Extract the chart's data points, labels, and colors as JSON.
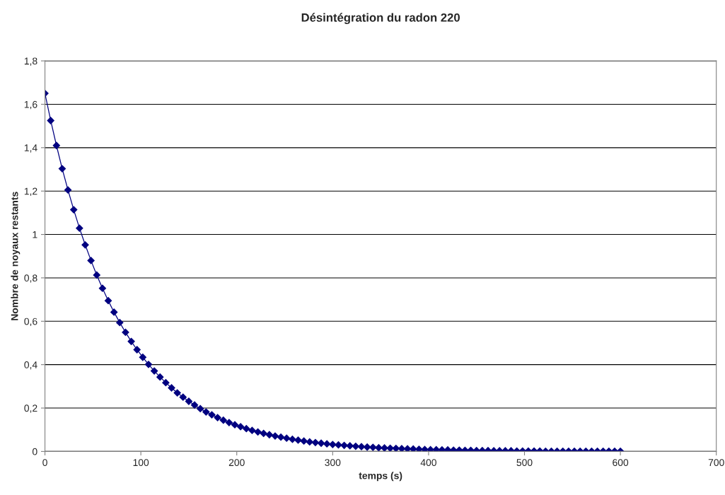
{
  "chart_data": {
    "type": "line",
    "title": "Désintégration du radon 220",
    "xlabel": "temps (s)",
    "ylabel": "Nombre de noyaux restants",
    "series": [
      {
        "color": "#000080",
        "x": [
          0,
          6,
          12,
          18,
          24,
          30,
          36,
          42,
          48,
          54,
          60,
          66,
          72,
          78,
          84,
          90,
          96,
          102,
          108,
          114,
          120,
          126,
          132,
          138,
          144,
          150,
          156,
          162,
          168,
          174,
          180,
          186,
          192,
          198,
          204,
          210,
          216,
          222,
          228,
          234,
          240,
          246,
          252,
          258,
          264,
          270,
          276,
          282,
          288,
          294,
          300,
          306,
          312,
          318,
          324,
          330,
          336,
          342,
          348,
          354,
          360,
          366,
          372,
          378,
          384,
          390,
          396,
          402,
          408,
          414,
          420,
          426,
          432,
          438,
          444,
          450,
          456,
          462,
          468,
          474,
          480,
          486,
          492,
          498,
          504,
          510,
          516,
          522,
          528,
          534,
          540,
          546,
          552,
          558,
          564,
          570,
          576,
          582,
          588,
          594,
          600
        ],
        "values": [
          1.65,
          1.525,
          1.41,
          1.303,
          1.205,
          1.114,
          1.029,
          0.952,
          0.88,
          0.813,
          0.752,
          0.695,
          0.642,
          0.594,
          0.549,
          0.507,
          0.469,
          0.434,
          0.401,
          0.371,
          0.343,
          0.317,
          0.293,
          0.27,
          0.25,
          0.231,
          0.214,
          0.197,
          0.182,
          0.169,
          0.156,
          0.144,
          0.133,
          0.123,
          0.114,
          0.105,
          0.097,
          0.09,
          0.083,
          0.077,
          0.071,
          0.066,
          0.061,
          0.056,
          0.052,
          0.048,
          0.044,
          0.041,
          0.038,
          0.035,
          0.032,
          0.03,
          0.028,
          0.026,
          0.024,
          0.022,
          0.02,
          0.019,
          0.017,
          0.016,
          0.015,
          0.014,
          0.013,
          0.012,
          0.011,
          0.01,
          0.009,
          0.008,
          0.008,
          0.007,
          0.007,
          0.006,
          0.006,
          0.005,
          0.005,
          0.004,
          0.004,
          0.004,
          0.003,
          0.003,
          0.003,
          0.003,
          0.002,
          0.002,
          0.002,
          0.002,
          0.002,
          0.001,
          0.001,
          0.001,
          0.001,
          0.001,
          0.001,
          0.001,
          0.001,
          0.001,
          0.001,
          0.001,
          0.001,
          0.001,
          0.001
        ]
      }
    ],
    "xlim": [
      0,
      700
    ],
    "xticks": [
      0,
      100,
      200,
      300,
      400,
      500,
      600,
      700
    ],
    "ylim": [
      0,
      1.8
    ],
    "yticks": [
      0,
      {
        "value": 0.2,
        "label": "0,2"
      },
      {
        "value": 0.4,
        "label": "0,4"
      },
      {
        "value": 0.6,
        "label": "0,6"
      },
      {
        "value": 0.8,
        "label": "0,8"
      },
      1,
      {
        "value": 1.2,
        "label": "1,2"
      },
      {
        "value": 1.4,
        "label": "1,4"
      },
      {
        "value": 1.6,
        "label": "1,6"
      },
      {
        "value": 1.8,
        "label": "1,8"
      }
    ],
    "grid": "y",
    "marker": "diamond",
    "line_style": "solid",
    "legend": false
  }
}
